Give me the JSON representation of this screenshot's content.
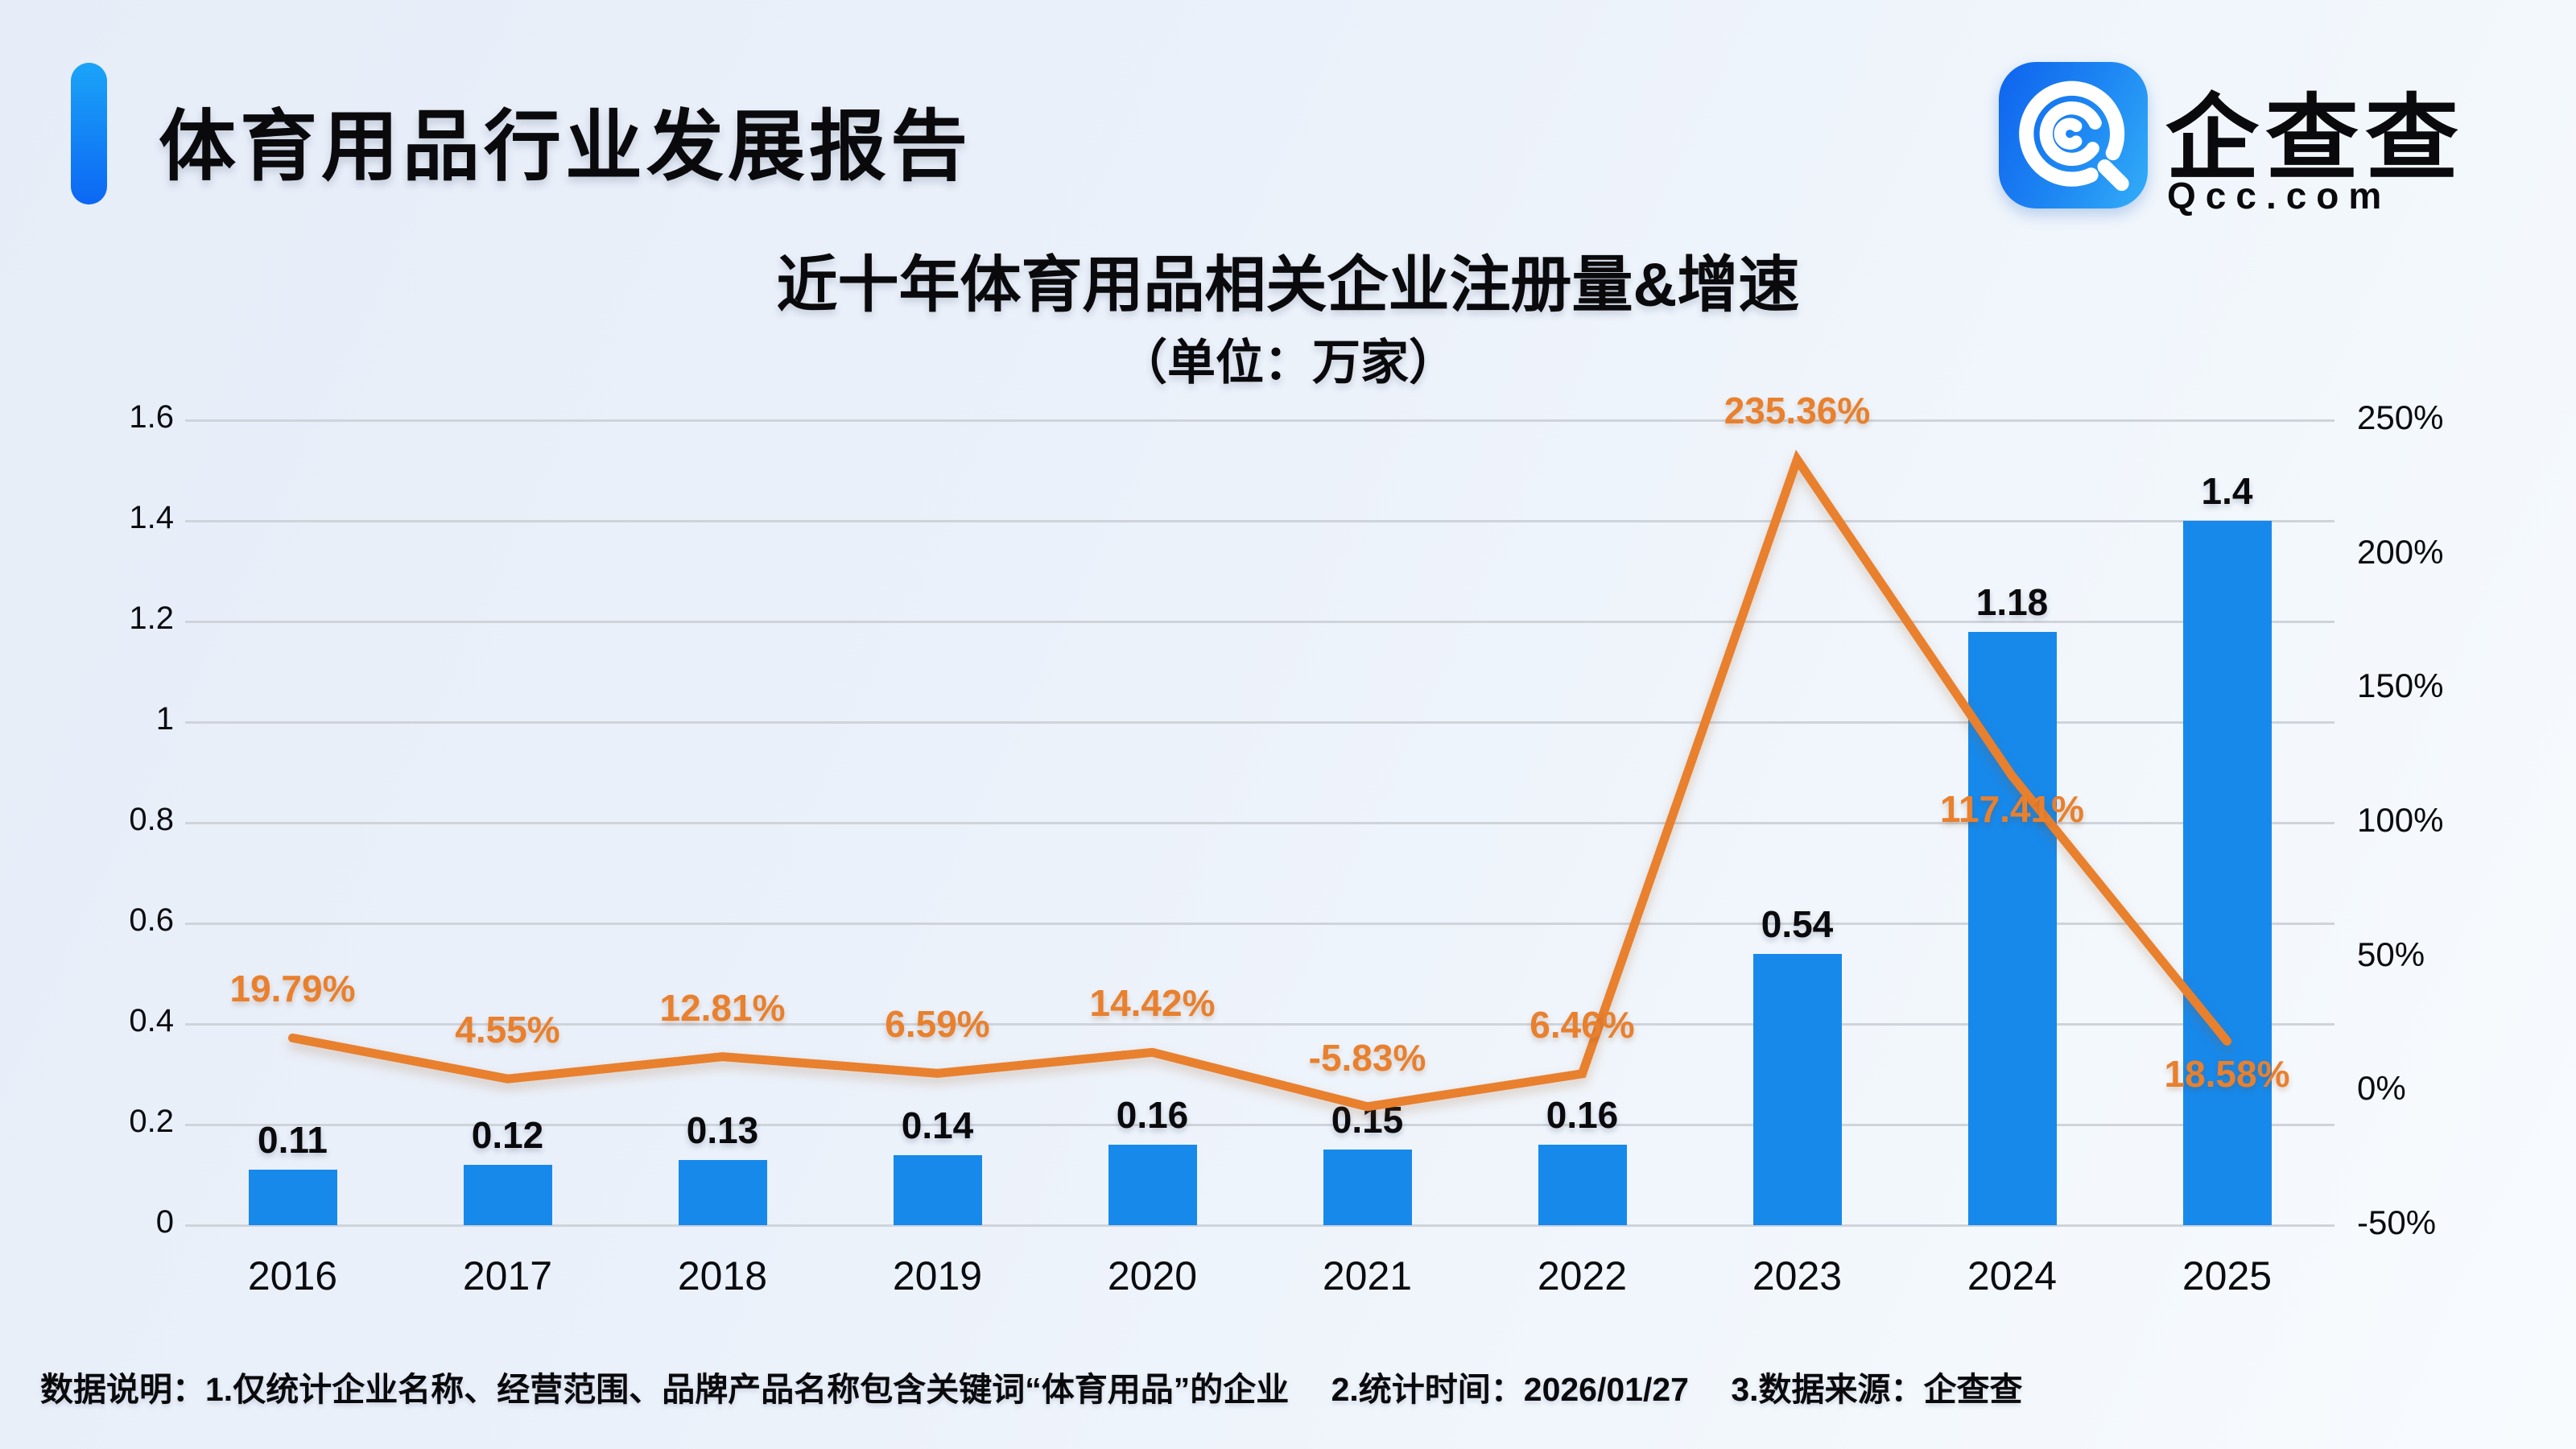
{
  "header": {
    "title": "体育用品行业发展报告"
  },
  "logo": {
    "brand": "企查查",
    "domain": "Qcc.com",
    "icon": "qcc-magnifier-icon"
  },
  "chart": {
    "title": "近十年体育用品相关企业注册量&增速",
    "subtitle": "（单位：万家）"
  },
  "chart_data": {
    "type": "combo",
    "title": "近十年体育用品相关企业注册量&增速",
    "subtitle": "（单位：万家）",
    "categories": [
      "2016",
      "2017",
      "2018",
      "2019",
      "2020",
      "2021",
      "2022",
      "2023",
      "2024",
      "2025"
    ],
    "series": [
      {
        "name": "注册量（万家）",
        "type": "bar",
        "y_axis": "left",
        "color": "#1789EB",
        "values": [
          0.11,
          0.12,
          0.13,
          0.14,
          0.16,
          0.15,
          0.16,
          0.54,
          1.18,
          1.4
        ],
        "data_labels": [
          "0.11",
          "0.12",
          "0.13",
          "0.14",
          "0.16",
          "0.15",
          "0.16",
          "0.54",
          "1.18",
          "1.4"
        ]
      },
      {
        "name": "增速",
        "type": "line",
        "y_axis": "right",
        "color": "#E8802E",
        "values": [
          19.79,
          4.55,
          12.81,
          6.59,
          14.42,
          -5.83,
          6.46,
          235.36,
          117.41,
          18.58
        ],
        "data_labels": [
          "19.79%",
          "4.55%",
          "12.81%",
          "6.59%",
          "14.42%",
          "-5.83%",
          "6.46%",
          "235.36%",
          "117.41%",
          "18.58%"
        ],
        "label_side": [
          "above",
          "above",
          "above",
          "above",
          "above",
          "above",
          "above",
          "above",
          "below",
          "below"
        ]
      }
    ],
    "left_axis": {
      "min": 0,
      "max": 1.6,
      "ticks": [
        "0",
        "0.2",
        "0.4",
        "0.6",
        "0.8",
        "1",
        "1.2",
        "1.4",
        "1.6"
      ]
    },
    "right_axis": {
      "min": -50,
      "max": 250,
      "ticks": [
        "-50%",
        "0%",
        "50%",
        "100%",
        "150%",
        "200%",
        "250%"
      ]
    },
    "grid": {
      "horizontal": true,
      "vertical": false
    },
    "legend": {
      "visible": false
    }
  },
  "colors": {
    "bar": "#1789EB",
    "line": "#E8802E",
    "accent": "#0C67F4",
    "grid": "#CFD3DA",
    "text": "#0A0A0C"
  },
  "footer": {
    "note": "数据说明：1.仅统计企业名称、经营范围、品牌产品名称包含关键词“体育用品”的企业　 2.统计时间：2026/01/27　 3.数据来源：企查查"
  }
}
